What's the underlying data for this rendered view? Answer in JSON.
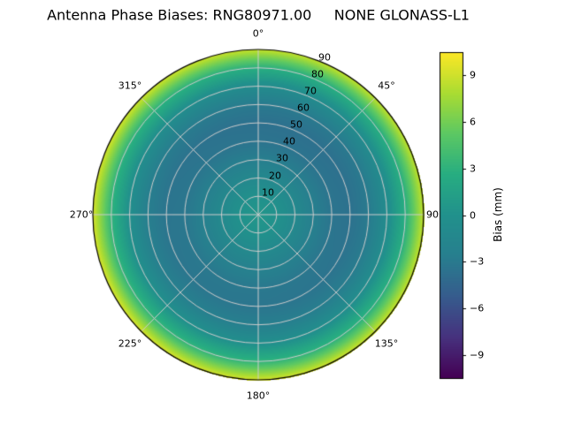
{
  "chart_data": {
    "type": "heatmap",
    "projection": "polar",
    "title": "Antenna Phase Biases: RNG80971.00     NONE GLONASS-L1",
    "theta_tick_labels": [
      "0°",
      "45°",
      "90",
      "135°",
      "180°",
      "225°",
      "270°",
      "315°"
    ],
    "radial_tick_labels": [
      "10",
      "20",
      "30",
      "40",
      "50",
      "60",
      "70",
      "80",
      "90"
    ],
    "radial_ticks_deg": [
      10,
      20,
      30,
      40,
      50,
      60,
      70,
      80,
      90
    ],
    "radial_label_azimuth_deg": 22.5,
    "colorbar": {
      "label": "Bias (mm)",
      "tick_labels": [
        "9",
        "6",
        "3",
        "0",
        "−3",
        "−6",
        "−9"
      ],
      "tick_values": [
        9,
        6,
        3,
        0,
        -3,
        -6,
        -9
      ],
      "vmin": -10.5,
      "vmax": 10.5,
      "colormap": "viridis"
    },
    "zenith_profile": {
      "zenith_deg": [
        0,
        10,
        20,
        30,
        40,
        50,
        60,
        70,
        80,
        90
      ],
      "bias_mm": [
        0.5,
        0.0,
        -1.2,
        -2.5,
        -3.3,
        -3.5,
        -2.8,
        -0.5,
        3.0,
        9.0
      ]
    },
    "azimuth_variation": {
      "amplitude_mm": 0.4,
      "phase_deg": 210
    },
    "colors": {
      "grid": "#cccccc",
      "outline": "#000000",
      "viridis_stops": [
        "#440154",
        "#46327e",
        "#365c8d",
        "#277f8e",
        "#21918c",
        "#27ad81",
        "#5cc863",
        "#aadc32",
        "#fde725"
      ]
    }
  }
}
